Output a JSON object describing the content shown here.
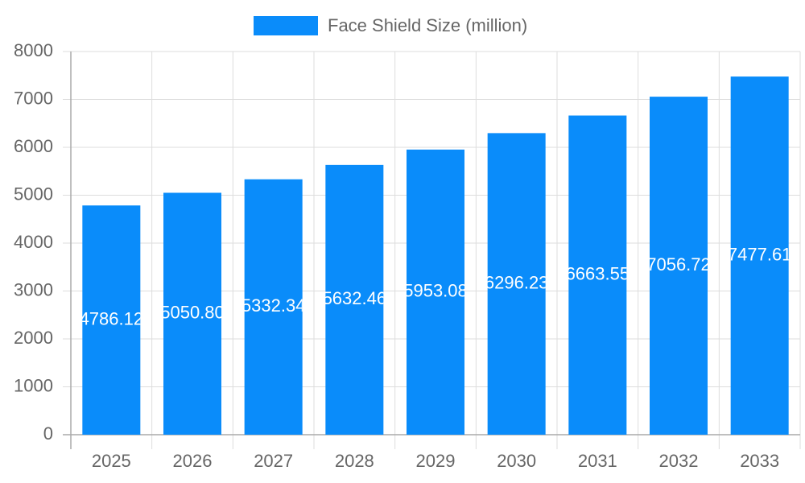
{
  "chart_data": {
    "type": "bar",
    "categories": [
      "2025",
      "2026",
      "2027",
      "2028",
      "2029",
      "2030",
      "2031",
      "2032",
      "2033"
    ],
    "series": [
      {
        "name": "Face Shield Size (million)",
        "color": "#0a8cfa",
        "values": [
          4786.12,
          5050.8,
          5332.34,
          5632.46,
          5953.08,
          6296.23,
          6663.55,
          7056.72,
          7477.61
        ],
        "value_labels": [
          "4786.12",
          "5050.80",
          "5332.34",
          "5632.46",
          "5953.08",
          "6296.23",
          "6663.55",
          "7056.72",
          "7477.61"
        ]
      }
    ],
    "ylim": [
      0,
      8000
    ],
    "yticks": [
      0,
      1000,
      2000,
      3000,
      4000,
      5000,
      6000,
      7000,
      8000
    ],
    "grid": true,
    "legend": "top"
  }
}
